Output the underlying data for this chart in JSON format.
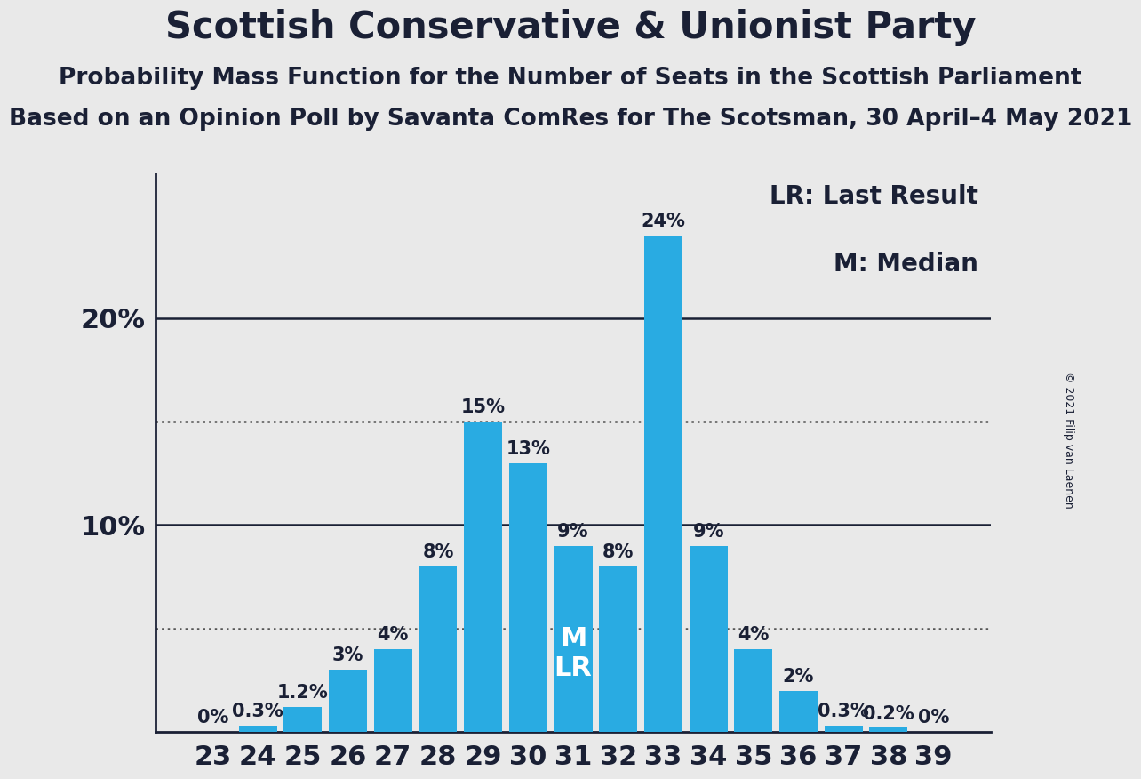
{
  "title": "Scottish Conservative & Unionist Party",
  "subtitle1": "Probability Mass Function for the Number of Seats in the Scottish Parliament",
  "subtitle2": "Based on an Opinion Poll by Savanta ComRes for The Scotsman, 30 April–4 May 2021",
  "copyright": "© 2021 Filip van Laenen",
  "categories": [
    23,
    24,
    25,
    26,
    27,
    28,
    29,
    30,
    31,
    32,
    33,
    34,
    35,
    36,
    37,
    38,
    39
  ],
  "values": [
    0.0,
    0.3,
    1.2,
    3.0,
    4.0,
    8.0,
    15.0,
    13.0,
    9.0,
    8.0,
    24.0,
    9.0,
    4.0,
    2.0,
    0.3,
    0.2,
    0.0
  ],
  "labels": [
    "0%",
    "0.3%",
    "1.2%",
    "3%",
    "4%",
    "8%",
    "15%",
    "13%",
    "9%",
    "8%",
    "24%",
    "9%",
    "4%",
    "2%",
    "0.3%",
    "0.2%",
    "0%"
  ],
  "bar_color": "#29ABE2",
  "background_color": "#E9E9E9",
  "text_color": "#1a2035",
  "median_seat": 31,
  "lr_seat": 31,
  "dotted_line1": 5.0,
  "dotted_line2": 15.0,
  "solid_line1": 10.0,
  "solid_line2": 20.0,
  "ylim": [
    0,
    27
  ],
  "legend_lr": "LR: Last Result",
  "legend_m": "M: Median",
  "title_fontsize": 30,
  "subtitle1_fontsize": 19,
  "subtitle2_fontsize": 19,
  "axis_tick_fontsize": 22,
  "bar_label_fontsize": 15,
  "legend_fontsize": 20,
  "mlr_fontsize": 22
}
